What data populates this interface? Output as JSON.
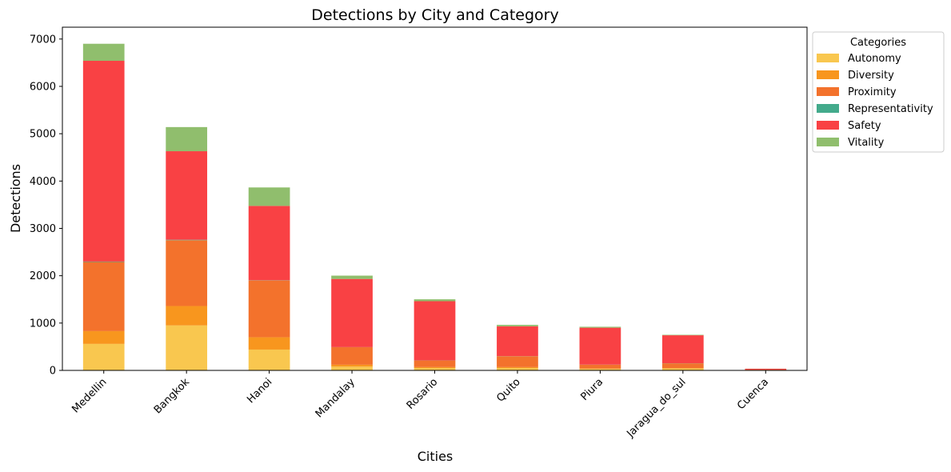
{
  "chart_data": {
    "type": "bar",
    "stacked": true,
    "title": "Detections by City and Category",
    "xlabel": "Cities",
    "ylabel": "Detections",
    "ylim": [
      0,
      7250
    ],
    "yticks": [
      0,
      1000,
      2000,
      3000,
      4000,
      5000,
      6000,
      7000
    ],
    "categories": [
      "Medellin",
      "Bangkok",
      "Hanoi",
      "Mandalay",
      "Rosario",
      "Quito",
      "Piura",
      "Jaragua_do_sul",
      "Cuenca"
    ],
    "series": [
      {
        "name": "Autonomy",
        "color": "#f9c74f",
        "values": [
          560,
          950,
          440,
          80,
          50,
          50,
          30,
          40,
          5
        ]
      },
      {
        "name": "Diversity",
        "color": "#f8961e",
        "values": [
          270,
          410,
          260,
          40,
          20,
          20,
          10,
          10,
          3
        ]
      },
      {
        "name": "Proximity",
        "color": "#f3722c",
        "values": [
          1460,
          1390,
          1200,
          370,
          140,
          230,
          80,
          100,
          7
        ]
      },
      {
        "name": "Representativity",
        "color": "#43aa8b",
        "values": [
          10,
          10,
          5,
          2,
          2,
          2,
          2,
          2,
          0
        ]
      },
      {
        "name": "Safety",
        "color": "#f94144",
        "values": [
          4240,
          1870,
          1570,
          1440,
          1250,
          630,
          780,
          590,
          20
        ]
      },
      {
        "name": "Vitality",
        "color": "#90be6d",
        "values": [
          360,
          510,
          390,
          70,
          40,
          30,
          20,
          10,
          2
        ]
      }
    ],
    "legend": {
      "title": "Categories",
      "placement": "outside-top-right"
    },
    "grid": false
  }
}
